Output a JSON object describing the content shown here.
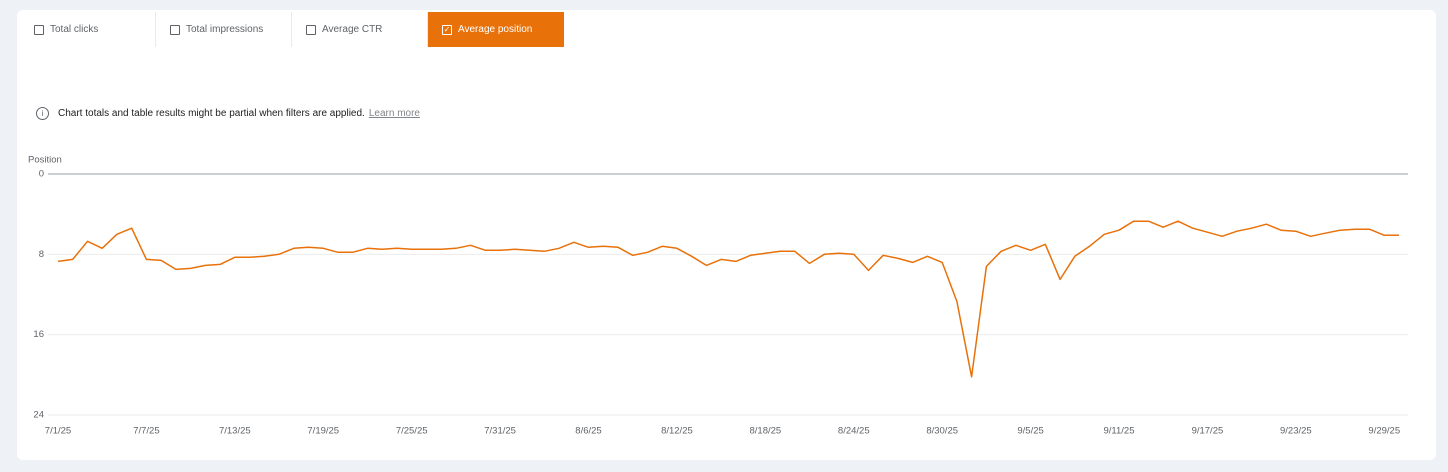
{
  "tabs": [
    {
      "label": "Total clicks",
      "selected": false
    },
    {
      "label": "Total impressions",
      "selected": false
    },
    {
      "label": "Average CTR",
      "selected": false
    },
    {
      "label": "Average position",
      "selected": true
    }
  ],
  "notice": {
    "text": "Chart totals and table results might be partial when filters are applied.",
    "link": "Learn more"
  },
  "chart_data": {
    "type": "line",
    "y_label": "Position",
    "color": "#e8710a",
    "y_reversed": true,
    "grid": true,
    "ylim": [
      0,
      24
    ],
    "yticks": [
      0,
      8,
      16,
      24
    ],
    "categories": [
      "7/1/25",
      null,
      null,
      null,
      null,
      null,
      "7/7/25",
      null,
      null,
      null,
      null,
      null,
      "7/13/25",
      null,
      null,
      null,
      null,
      null,
      "7/19/25",
      null,
      null,
      null,
      null,
      null,
      "7/25/25",
      null,
      null,
      null,
      null,
      null,
      "7/31/25",
      null,
      null,
      null,
      null,
      null,
      "8/6/25",
      null,
      null,
      null,
      null,
      null,
      "8/12/25",
      null,
      null,
      null,
      null,
      null,
      "8/18/25",
      null,
      null,
      null,
      null,
      null,
      "8/24/25",
      null,
      null,
      null,
      null,
      null,
      "8/30/25",
      null,
      null,
      null,
      null,
      null,
      "9/5/25",
      null,
      null,
      null,
      null,
      null,
      "9/11/25",
      null,
      null,
      null,
      null,
      null,
      "9/17/25",
      null,
      null,
      null,
      null,
      null,
      "9/23/25",
      null,
      null,
      null,
      null,
      null,
      "9/29/25",
      null
    ],
    "values": [
      8.7,
      8.5,
      6.7,
      7.4,
      6.0,
      5.4,
      8.5,
      8.6,
      9.5,
      9.4,
      9.1,
      9.0,
      8.3,
      8.3,
      8.2,
      8.0,
      7.4,
      7.3,
      7.4,
      7.8,
      7.8,
      7.4,
      7.5,
      7.4,
      7.5,
      7.5,
      7.5,
      7.4,
      7.1,
      7.6,
      7.6,
      7.5,
      7.6,
      7.7,
      7.4,
      6.8,
      7.3,
      7.2,
      7.3,
      8.1,
      7.8,
      7.2,
      7.4,
      8.2,
      9.1,
      8.5,
      8.7,
      8.1,
      7.9,
      7.7,
      7.7,
      8.9,
      8.0,
      7.9,
      8.0,
      9.6,
      8.1,
      8.4,
      8.8,
      8.2,
      8.8,
      12.7,
      20.2,
      9.2,
      7.7,
      7.1,
      7.6,
      7.0,
      10.5,
      8.2,
      7.2,
      6.0,
      5.6,
      4.7,
      4.7,
      5.3,
      4.7,
      5.4,
      5.8,
      6.2,
      5.7,
      5.4,
      5.0,
      5.6,
      5.7,
      6.2,
      5.9,
      5.6,
      5.5,
      5.5,
      6.1,
      6.1
    ]
  }
}
